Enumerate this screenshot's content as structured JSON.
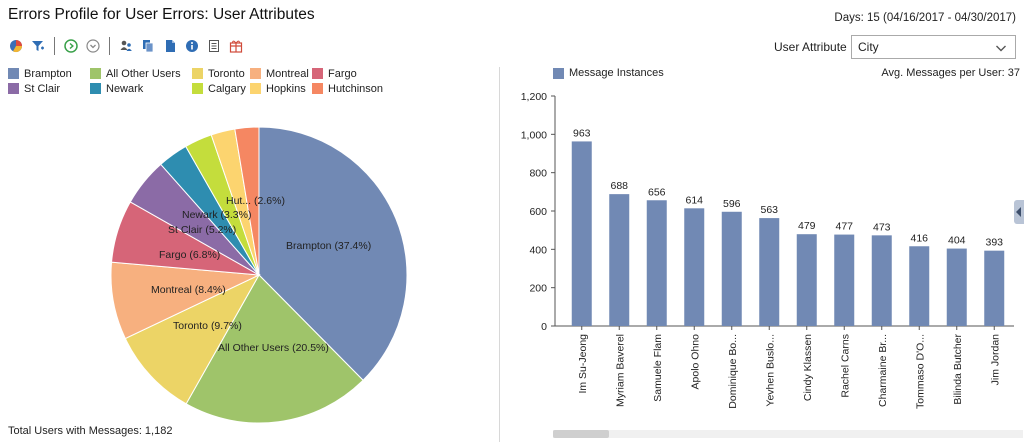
{
  "header": {
    "title": "Errors Profile for User Errors: User Attributes",
    "days": "Days: 15 (04/16/2017 - 04/30/2017)"
  },
  "toolbar": {
    "icons": [
      "pie-chart-icon",
      "filter-icon",
      "play-circle-icon",
      "chevron-circle-icon",
      "users-icon",
      "copy-icon",
      "document-icon",
      "info-icon",
      "list-icon",
      "gift-icon"
    ]
  },
  "attribute": {
    "label": "User Attribute",
    "value": "City"
  },
  "pie_legend": {
    "row1": [
      {
        "label": "Brampton",
        "color": "#7189b4"
      },
      {
        "label": "All Other Users",
        "color": "#9fc46a"
      },
      {
        "label": "Toronto",
        "color": "#ecd466"
      },
      {
        "label": "Montreal",
        "color": "#f7b07f"
      },
      {
        "label": "Fargo",
        "color": "#d66578"
      }
    ],
    "row2": [
      {
        "label": "St Clair",
        "color": "#8b6ba6"
      },
      {
        "label": "Newark",
        "color": "#2e8db0"
      },
      {
        "label": "Calgary",
        "color": "#c4dd3c"
      },
      {
        "label": "Hopkins",
        "color": "#fcd46f"
      },
      {
        "label": "Hutchinson",
        "color": "#f58762"
      }
    ]
  },
  "pie_labels": {
    "brampton": "Brampton (37.4%)",
    "all_other": "All Other Users (20.5%)",
    "toronto": "Toronto (9.7%)",
    "montreal": "Montreal (8.4%)",
    "fargo": "Fargo (6.8%)",
    "st_clair": "St Clair (5.2%)",
    "newark": "Newark (3.3%)",
    "hut": "Hut... (2.6%)"
  },
  "footer": {
    "total_users": "Total Users with Messages: 1,182"
  },
  "bar_panel": {
    "legend_label": "Message Instances",
    "legend_color": "#7189b4",
    "avg_messages": "Avg. Messages per User: 37"
  },
  "chart_data": [
    {
      "type": "pie",
      "categories": [
        "Brampton",
        "All Other Users",
        "Toronto",
        "Montreal",
        "Fargo",
        "St Clair",
        "Newark",
        "Calgary",
        "Hopkins",
        "Hutchinson"
      ],
      "values": [
        37.4,
        20.5,
        9.7,
        8.4,
        6.8,
        5.2,
        3.3,
        3.0,
        2.6,
        2.6
      ],
      "colors": [
        "#7189b4",
        "#9fc46a",
        "#ecd466",
        "#f7b07f",
        "#d66578",
        "#8b6ba6",
        "#2e8db0",
        "#c4dd3c",
        "#fcd46f",
        "#f58762"
      ]
    },
    {
      "type": "bar",
      "categories": [
        "Im Su-Jeong",
        "Myriam Baverel",
        "Samuele Flam",
        "Apolo Ohno",
        "Dominique Bo...",
        "Yevhen Buslo...",
        "Cindy Klassen",
        "Rachel Carns",
        "Charmaine Br...",
        "Tommaso D'O...",
        "Bilinda Butcher",
        "Jim Jordan"
      ],
      "series": [
        {
          "name": "Message Instances",
          "values": [
            963,
            688,
            656,
            614,
            596,
            563,
            479,
            477,
            473,
            416,
            404,
            393
          ]
        }
      ],
      "ylim": [
        0,
        1200
      ],
      "yticks": [
        "0",
        "200",
        "400",
        "600",
        "800",
        "1,000",
        "1,200"
      ],
      "legend": "top-left",
      "grid": false
    }
  ]
}
